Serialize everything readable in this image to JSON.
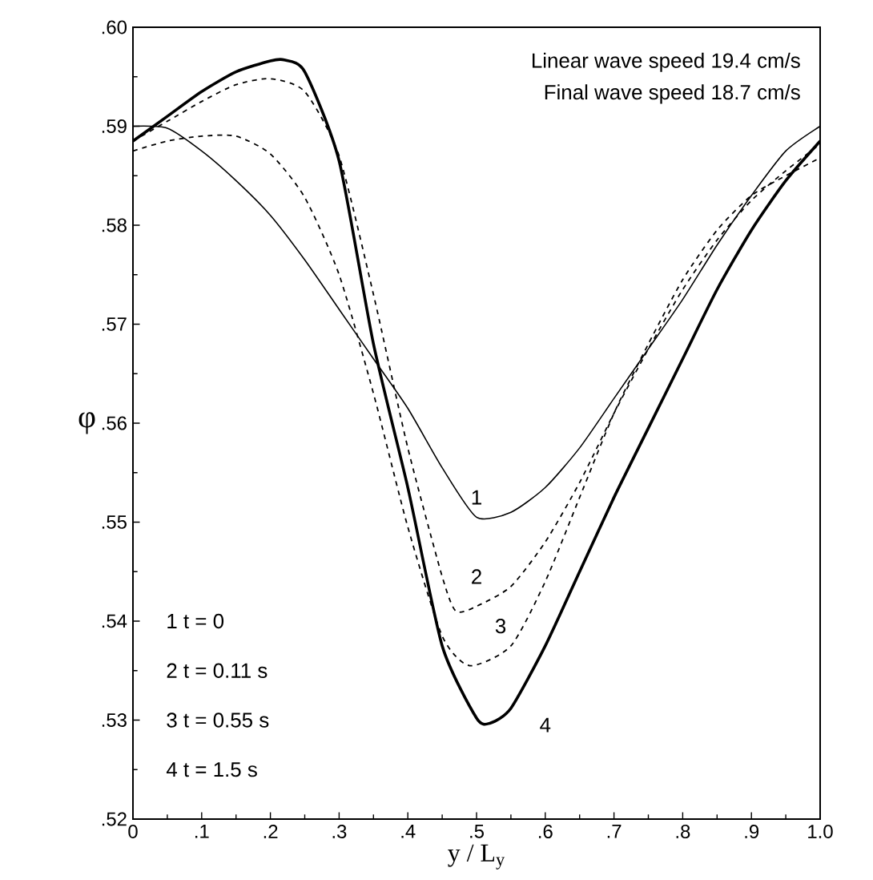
{
  "chart_data": {
    "type": "line",
    "xlabel": "y / L$_{y}$",
    "ylabel": "φ",
    "xlim": [
      0,
      1.0
    ],
    "ylim": [
      0.52,
      0.6
    ],
    "xticks": [
      0,
      {
        "value": 0.1,
        "label": ".1"
      },
      {
        "value": 0.2,
        "label": ".2"
      },
      {
        "value": 0.3,
        "label": ".3"
      },
      {
        "value": 0.4,
        "label": ".4"
      },
      {
        "value": 0.5,
        "label": ".5"
      },
      {
        "value": 0.6,
        "label": ".6"
      },
      {
        "value": 0.7,
        "label": ".7"
      },
      {
        "value": 0.8,
        "label": ".8"
      },
      {
        "value": 0.9,
        "label": ".9"
      },
      {
        "value": 1.0,
        "label": "1.0"
      }
    ],
    "yticks": [
      {
        "value": 0.52,
        "label": ".52"
      },
      {
        "value": 0.53,
        "label": ".53"
      },
      {
        "value": 0.54,
        "label": ".54"
      },
      {
        "value": 0.55,
        "label": ".55"
      },
      {
        "value": 0.56,
        "label": ".56"
      },
      {
        "value": 0.57,
        "label": ".57"
      },
      {
        "value": 0.58,
        "label": ".58"
      },
      {
        "value": 0.59,
        "label": ".59"
      },
      {
        "value": 0.6,
        "label": ".60"
      }
    ],
    "grid": false,
    "marker": "none",
    "series": [
      {
        "color": "#000000",
        "line_style": "solid",
        "x": [
          0,
          0.05,
          0.1,
          0.15,
          0.2,
          0.25,
          0.3,
          0.35,
          0.4,
          0.45,
          0.5,
          0.55,
          0.6,
          0.65,
          0.7,
          0.75,
          0.8,
          0.85,
          0.9,
          0.95,
          1.0
        ],
        "values": [
          0.59,
          0.5898,
          0.5875,
          0.5845,
          0.581,
          0.5765,
          0.5715,
          0.5665,
          0.5615,
          0.5555,
          0.5505,
          0.551,
          0.5535,
          0.5575,
          0.5625,
          0.5675,
          0.5725,
          0.578,
          0.583,
          0.5875,
          0.59
        ]
      },
      {
        "color": "#000000",
        "line_style": "dashed",
        "x": [
          0,
          0.05,
          0.1,
          0.15,
          0.2,
          0.25,
          0.3,
          0.35,
          0.4,
          0.45,
          0.47,
          0.5,
          0.55,
          0.6,
          0.65,
          0.7,
          0.75,
          0.8,
          0.85,
          0.9,
          0.95,
          1.0
        ],
        "values": [
          0.5885,
          0.5905,
          0.5925,
          0.5942,
          0.5948,
          0.5935,
          0.587,
          0.573,
          0.5575,
          0.5445,
          0.541,
          0.5415,
          0.5435,
          0.548,
          0.554,
          0.561,
          0.5675,
          0.5735,
          0.5785,
          0.5825,
          0.5855,
          0.5882
        ]
      },
      {
        "color": "#000000",
        "line_style": "dashed",
        "x": [
          0,
          0.05,
          0.1,
          0.15,
          0.2,
          0.25,
          0.3,
          0.35,
          0.4,
          0.45,
          0.49,
          0.55,
          0.6,
          0.65,
          0.7,
          0.75,
          0.8,
          0.85,
          0.9,
          0.95,
          1.0
        ],
        "values": [
          0.5875,
          0.5885,
          0.589,
          0.589,
          0.5872,
          0.5828,
          0.575,
          0.563,
          0.5495,
          0.5385,
          0.5355,
          0.5375,
          0.544,
          0.5525,
          0.561,
          0.568,
          0.5745,
          0.5795,
          0.583,
          0.585,
          0.5868
        ]
      },
      {
        "color": "#000000",
        "line_style": "solid",
        "x": [
          0,
          0.05,
          0.1,
          0.15,
          0.2,
          0.22,
          0.25,
          0.3,
          0.35,
          0.4,
          0.45,
          0.5,
          0.52,
          0.55,
          0.6,
          0.65,
          0.7,
          0.75,
          0.8,
          0.85,
          0.9,
          0.95,
          1.0
        ],
        "values": [
          0.5885,
          0.591,
          0.5935,
          0.5955,
          0.5966,
          0.5967,
          0.5955,
          0.5865,
          0.568,
          0.5535,
          0.5375,
          0.5302,
          0.5297,
          0.5312,
          0.5375,
          0.545,
          0.5525,
          0.5595,
          0.5665,
          0.5735,
          0.5795,
          0.5845,
          0.5885
        ]
      }
    ],
    "annotations": [
      "Linear wave speed 19.4 cm/s",
      "Final wave speed 18.7 cm/s",
      "1   t = 0",
      "2   t = 0.11 s",
      "3   t = 0.55 s",
      "4   t = 1.5 s",
      "1",
      "2",
      "3",
      "4"
    ]
  }
}
